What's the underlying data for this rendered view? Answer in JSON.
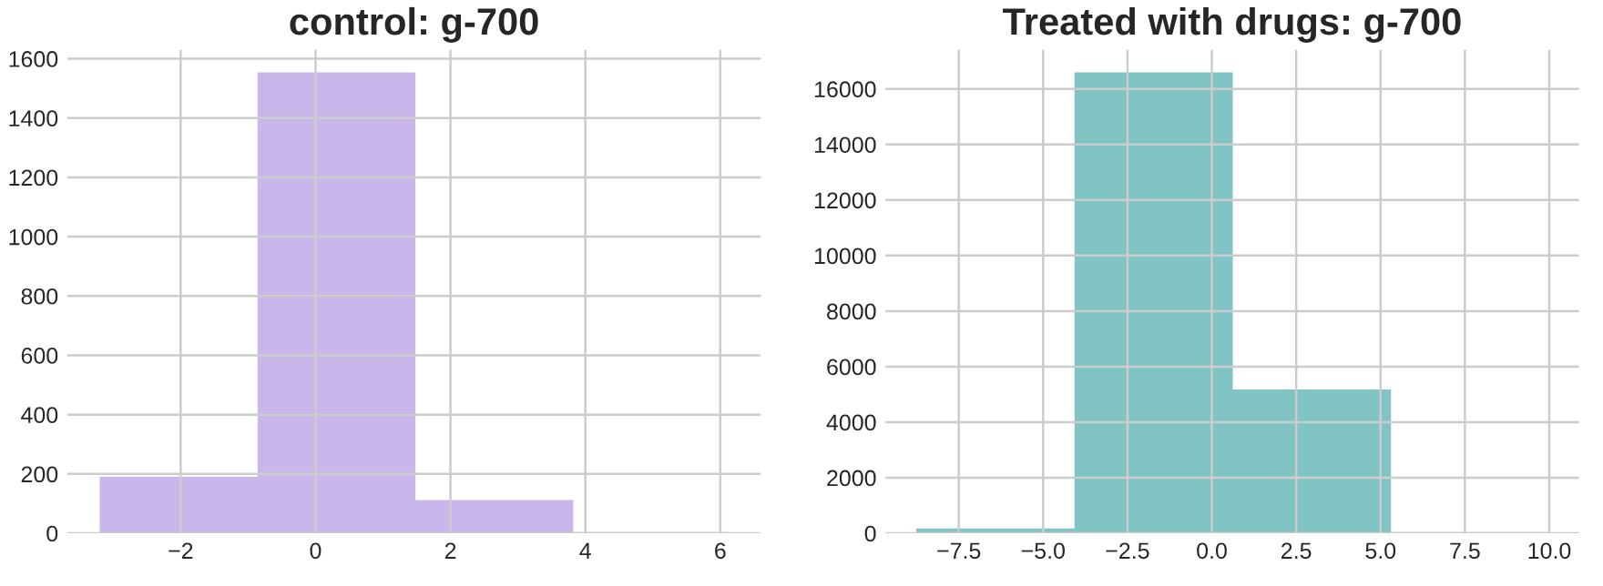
{
  "chart_data": [
    {
      "type": "histogram",
      "title": "control: g-700",
      "bins": [
        -3.2,
        -0.86,
        1.48,
        3.82,
        6.16
      ],
      "values": [
        190,
        1554,
        112,
        4
      ],
      "color": "#c9b7ec",
      "xlim": [
        -3.68,
        6.6
      ],
      "xticks": [
        {
          "value": -2,
          "label": "−2"
        },
        0,
        2,
        4,
        6
      ],
      "ylim": [
        0,
        1630
      ],
      "yticks": [
        0,
        200,
        400,
        600,
        800,
        1000,
        1200,
        1400,
        1600
      ],
      "grid": true
    },
    {
      "type": "histogram",
      "title": "Treated with drugs: g-700",
      "bins": [
        -8.76,
        -4.07,
        0.62,
        5.31,
        10.0
      ],
      "values": [
        170,
        16600,
        5180,
        40
      ],
      "color": "#80c4c4",
      "xlim": [
        -9.67,
        10.88
      ],
      "xticks": [
        {
          "value": -7.5,
          "label": "−7.5"
        },
        {
          "value": -5.0,
          "label": "−5.0"
        },
        {
          "value": -2.5,
          "label": "−2.5"
        },
        {
          "value": 0.0,
          "label": "0.0"
        },
        {
          "value": 2.5,
          "label": "2.5"
        },
        {
          "value": 5.0,
          "label": "5.0"
        },
        {
          "value": 7.5,
          "label": "7.5"
        },
        {
          "value": 10.0,
          "label": "10.0"
        }
      ],
      "ylim": [
        0,
        17410
      ],
      "yticks": [
        0,
        2000,
        4000,
        6000,
        8000,
        10000,
        12000,
        14000,
        16000
      ],
      "grid": true
    }
  ]
}
